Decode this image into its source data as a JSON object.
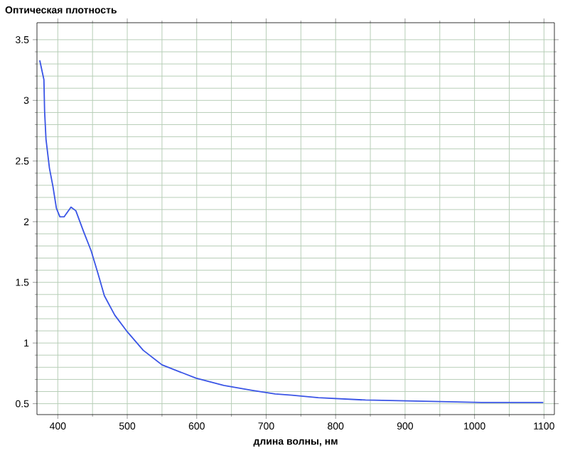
{
  "chart_data": {
    "type": "line",
    "ylabel": "Оптическая плотность",
    "xlabel": "длина волны, нм",
    "xlim": [
      370,
      1115
    ],
    "ylim": [
      0.41,
      3.64
    ],
    "xticks": [
      400,
      500,
      600,
      700,
      800,
      900,
      1000,
      1100
    ],
    "yticks": [
      0.5,
      1,
      1.5,
      2,
      2.5,
      3,
      3.5
    ],
    "grid": true,
    "marker": "none",
    "line_style": "solid",
    "series": [
      {
        "color": "#3a55e6",
        "x": [
          374,
          380,
          381,
          383,
          388,
          393,
          398,
          403,
          409,
          419,
          426,
          437,
          448,
          458,
          467,
          482,
          499,
          523,
          550,
          599,
          639,
          680,
          713,
          737,
          775,
          843,
          1010,
          1099
        ],
        "values": [
          3.33,
          3.17,
          2.91,
          2.68,
          2.44,
          2.29,
          2.11,
          2.04,
          2.04,
          2.12,
          2.09,
          1.92,
          1.76,
          1.57,
          1.39,
          1.23,
          1.1,
          0.94,
          0.82,
          0.71,
          0.65,
          0.61,
          0.58,
          0.57,
          0.55,
          0.53,
          0.51,
          0.51
        ]
      }
    ]
  }
}
